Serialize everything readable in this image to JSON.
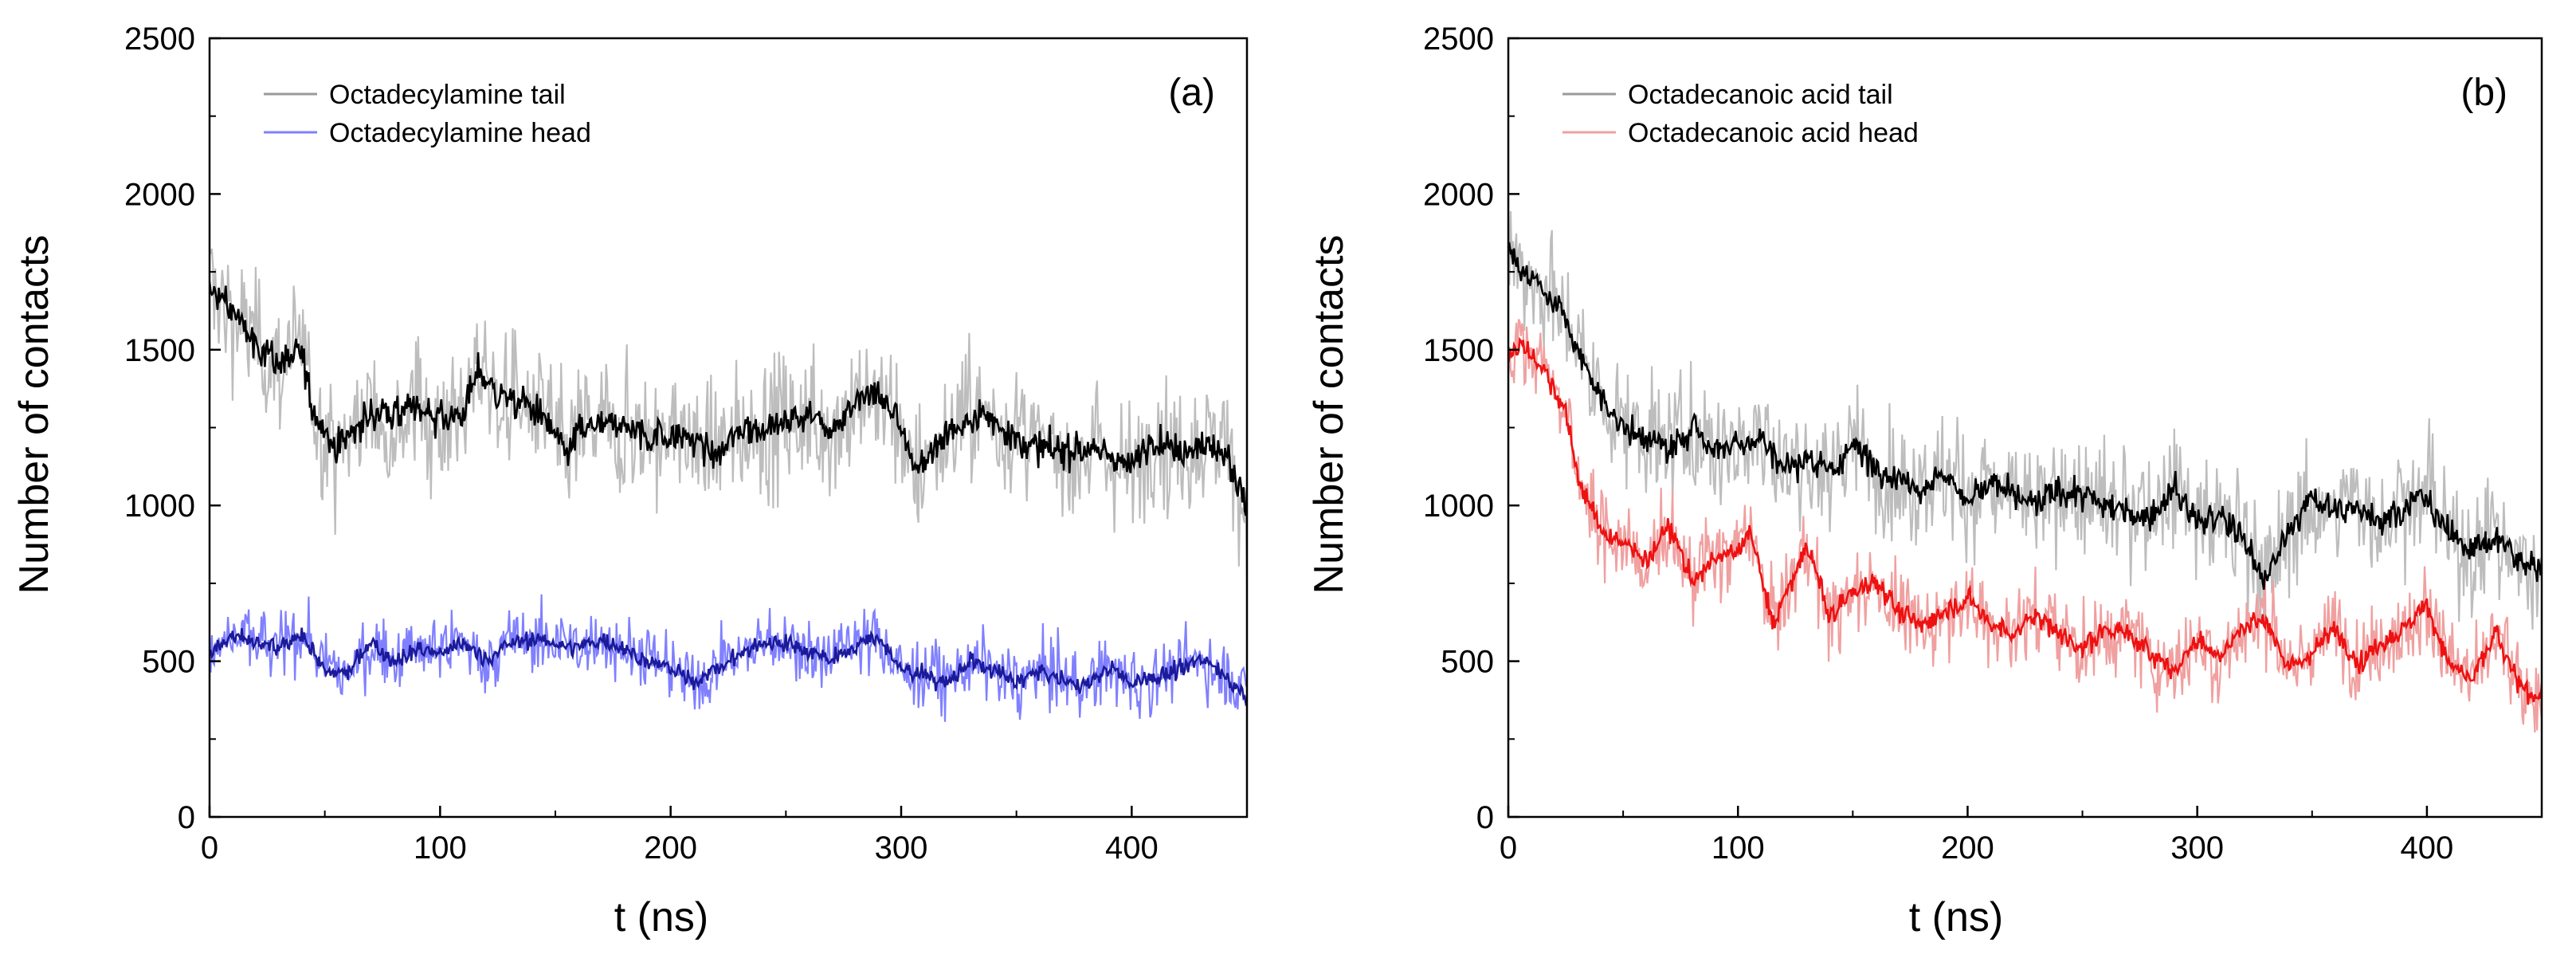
{
  "chart_data": [
    {
      "type": "line",
      "panel_label": "(a)",
      "xlabel": "t (ns)",
      "ylabel": "Number of contacts",
      "xlim": [
        0,
        450
      ],
      "ylim": [
        0,
        2500
      ],
      "x_ticks": [
        0,
        100,
        200,
        300,
        400
      ],
      "y_ticks": [
        0,
        500,
        1000,
        1500,
        2000,
        2500
      ],
      "legend_position": "top-left",
      "series": [
        {
          "name": "Octadecylamine tail",
          "raw_color": "#bdbdbd",
          "smooth_color": "#000000",
          "x": [
            0,
            10,
            20,
            30,
            40,
            45,
            55,
            60,
            70,
            80,
            90,
            100,
            110,
            117,
            125,
            135,
            145,
            155,
            160,
            170,
            180,
            190,
            200,
            210,
            220,
            230,
            240,
            250,
            260,
            270,
            280,
            290,
            300,
            305,
            320,
            335,
            345,
            355,
            370,
            385,
            400,
            410,
            420,
            430,
            440,
            450
          ],
          "y": [
            1700,
            1620,
            1520,
            1450,
            1500,
            1300,
            1180,
            1220,
            1300,
            1280,
            1320,
            1270,
            1300,
            1440,
            1350,
            1330,
            1290,
            1160,
            1240,
            1260,
            1250,
            1220,
            1230,
            1210,
            1160,
            1240,
            1250,
            1270,
            1290,
            1240,
            1330,
            1360,
            1260,
            1100,
            1230,
            1300,
            1240,
            1200,
            1170,
            1180,
            1120,
            1220,
            1170,
            1200,
            1180,
            1000
          ]
        },
        {
          "name": "Octadecylamine head",
          "raw_color": "#8080ff",
          "smooth_color": "#1a1a9a",
          "x": [
            0,
            10,
            20,
            30,
            40,
            50,
            60,
            70,
            80,
            90,
            100,
            110,
            120,
            130,
            140,
            150,
            160,
            170,
            180,
            190,
            200,
            210,
            220,
            230,
            240,
            250,
            260,
            270,
            280,
            290,
            300,
            310,
            320,
            330,
            340,
            350,
            360,
            370,
            380,
            390,
            400,
            410,
            420,
            430,
            440,
            450
          ],
          "y": [
            520,
            580,
            560,
            540,
            590,
            470,
            460,
            560,
            500,
            540,
            530,
            560,
            500,
            560,
            570,
            560,
            540,
            570,
            540,
            500,
            480,
            430,
            480,
            520,
            560,
            560,
            530,
            510,
            550,
            580,
            470,
            460,
            430,
            500,
            470,
            430,
            470,
            440,
            420,
            480,
            430,
            450,
            470,
            510,
            460,
            380
          ]
        }
      ]
    },
    {
      "type": "line",
      "panel_label": "(b)",
      "xlabel": "t (ns)",
      "ylabel": "Number of contacts",
      "xlim": [
        0,
        450
      ],
      "ylim": [
        0,
        2500
      ],
      "x_ticks": [
        0,
        100,
        200,
        300,
        400
      ],
      "y_ticks": [
        0,
        500,
        1000,
        1500,
        2000,
        2500
      ],
      "legend_position": "top-left",
      "series": [
        {
          "name": "Octadecanoic acid tail",
          "raw_color": "#bdbdbd",
          "smooth_color": "#000000",
          "x": [
            0,
            5,
            15,
            25,
            30,
            40,
            50,
            60,
            70,
            80,
            90,
            100,
            110,
            120,
            130,
            140,
            150,
            160,
            170,
            180,
            190,
            200,
            210,
            220,
            230,
            240,
            250,
            260,
            270,
            280,
            290,
            300,
            310,
            320,
            330,
            340,
            350,
            360,
            370,
            380,
            390,
            400,
            410,
            420,
            430,
            440,
            450
          ],
          "y": [
            1830,
            1760,
            1700,
            1600,
            1500,
            1350,
            1250,
            1220,
            1180,
            1250,
            1180,
            1200,
            1220,
            1120,
            1150,
            1100,
            1200,
            1120,
            1080,
            1060,
            1100,
            1020,
            1070,
            1030,
            1000,
            1050,
            1030,
            1000,
            980,
            970,
            1060,
            950,
            960,
            900,
            760,
            920,
            1020,
            980,
            1000,
            950,
            1000,
            1030,
            900,
            860,
            900,
            820,
            790
          ]
        },
        {
          "name": "Octadecanoic acid head",
          "raw_color": "#f0a0a0",
          "smooth_color": "#ee1111",
          "x": [
            0,
            5,
            15,
            25,
            30,
            40,
            50,
            60,
            70,
            80,
            90,
            100,
            105,
            115,
            125,
            130,
            140,
            150,
            160,
            170,
            180,
            190,
            200,
            210,
            220,
            230,
            240,
            250,
            260,
            270,
            280,
            290,
            300,
            310,
            320,
            330,
            340,
            350,
            360,
            370,
            380,
            390,
            400,
            410,
            420,
            430,
            440,
            450
          ],
          "y": [
            1480,
            1520,
            1450,
            1300,
            1100,
            920,
            880,
            820,
            930,
            760,
            830,
            850,
            930,
            620,
            780,
            880,
            640,
            720,
            760,
            660,
            610,
            660,
            700,
            620,
            590,
            650,
            590,
            540,
            600,
            590,
            520,
            470,
            570,
            510,
            610,
            640,
            470,
            530,
            610,
            490,
            560,
            600,
            680,
            490,
            440,
            590,
            420,
            380
          ]
        }
      ]
    }
  ]
}
